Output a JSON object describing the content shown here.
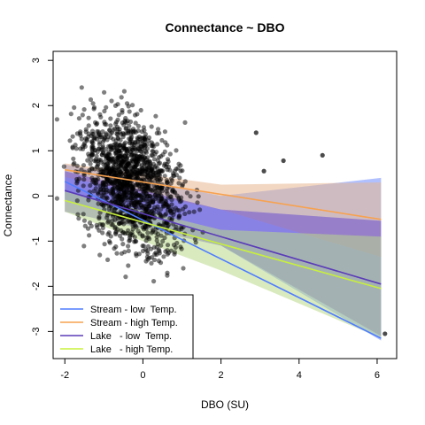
{
  "chart_data": {
    "type": "scatter",
    "title": "Connectance ~ DBO",
    "xlabel": "DBO (SU)",
    "ylabel": "Connectance",
    "xlim": [
      -2.3,
      6.5
    ],
    "ylim": [
      -3.6,
      3.2
    ],
    "x_ticks": [
      -2,
      0,
      2,
      4,
      6
    ],
    "y_ticks": [
      -3,
      -2,
      -1,
      0,
      1,
      2,
      3
    ],
    "grid": false,
    "legend_position": "bottom-left",
    "points": {
      "color": "#000000",
      "opacity": 0.5,
      "approx_count": 1500,
      "x_range": [
        -2.2,
        6.2
      ],
      "y_range": [
        -3.1,
        2.9
      ],
      "dense_cluster": {
        "x_center": -0.3,
        "y_center": 0.3,
        "x_spread": 0.9,
        "y_spread": 1.0
      },
      "extreme_points": [
        [
          6.2,
          -3.05
        ],
        [
          3.6,
          0.78
        ],
        [
          4.6,
          0.9
        ],
        [
          3.1,
          0.55
        ],
        [
          2.9,
          1.4
        ]
      ]
    },
    "series": [
      {
        "name": "Stream - low  Temp.",
        "color": "#4f7cff",
        "fill": "#6f8cff",
        "line": [
          [
            -2,
            0.32
          ],
          [
            6.1,
            -3.15
          ]
        ],
        "band_upper": [
          [
            -2,
            0.7
          ],
          [
            2,
            0.0
          ],
          [
            6.1,
            0.4
          ]
        ],
        "band_lower": [
          [
            -2,
            -0.1
          ],
          [
            2,
            -1.1
          ],
          [
            6.1,
            -3.2
          ]
        ]
      },
      {
        "name": "Stream - high Temp.",
        "color": "#f7a24f",
        "fill": "#e8b790",
        "line": [
          [
            -2,
            0.58
          ],
          [
            6.1,
            -0.52
          ]
        ],
        "band_upper": [
          [
            -2,
            0.72
          ],
          [
            2,
            0.25
          ],
          [
            6.1,
            0.3
          ]
        ],
        "band_lower": [
          [
            -2,
            0.42
          ],
          [
            2,
            -0.3
          ],
          [
            6.1,
            -1.35
          ]
        ]
      },
      {
        "name": "Lake   - low  Temp.",
        "color": "#5a3cb8",
        "fill": "#6a4fd0",
        "line": [
          [
            -2,
            0.12
          ],
          [
            6.1,
            -1.95
          ]
        ],
        "band_upper": [
          [
            -2,
            0.55
          ],
          [
            2,
            -0.3
          ],
          [
            6.1,
            -0.55
          ]
        ],
        "band_lower": [
          [
            -2,
            -0.35
          ],
          [
            2,
            -1.1
          ],
          [
            6.1,
            -3.1
          ]
        ]
      },
      {
        "name": "Lake   - high Temp.",
        "color": "#c8f03c",
        "fill": "#b9d98a",
        "line": [
          [
            -2,
            -0.1
          ],
          [
            6.1,
            -2.05
          ]
        ],
        "band_upper": [
          [
            -2,
            0.1
          ],
          [
            2,
            -0.75
          ],
          [
            6.1,
            -0.9
          ]
        ],
        "band_lower": [
          [
            -2,
            -0.35
          ],
          [
            2,
            -1.65
          ],
          [
            6.1,
            -3.15
          ]
        ]
      }
    ]
  }
}
